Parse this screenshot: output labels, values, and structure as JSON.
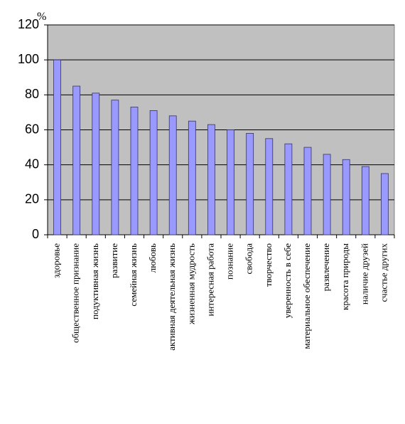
{
  "chart_data": {
    "type": "bar",
    "y_label": "%",
    "categories": [
      "здоровье",
      "общественное признание",
      "подуктивная жизнь",
      "развитие",
      "семейная жизнь",
      "любовь",
      "активная деятельная жизнь",
      "жизненная мудрость",
      "интересная работа",
      "познание",
      "свобода",
      "творчество",
      "уверенность в себе",
      "материальное обеспечение",
      "развлечение",
      "красота природы",
      "наличие друзей",
      "счастье других"
    ],
    "values": [
      100,
      85,
      81,
      77,
      73,
      71,
      68,
      65,
      63,
      60,
      58,
      55,
      52,
      50,
      46,
      43,
      39,
      35
    ],
    "color": "#9999ff",
    "plot_background": "#c0c0c0",
    "ylim": [
      0,
      120
    ],
    "yticks": [
      0,
      20,
      40,
      60,
      80,
      100,
      120
    ],
    "grid": true
  }
}
